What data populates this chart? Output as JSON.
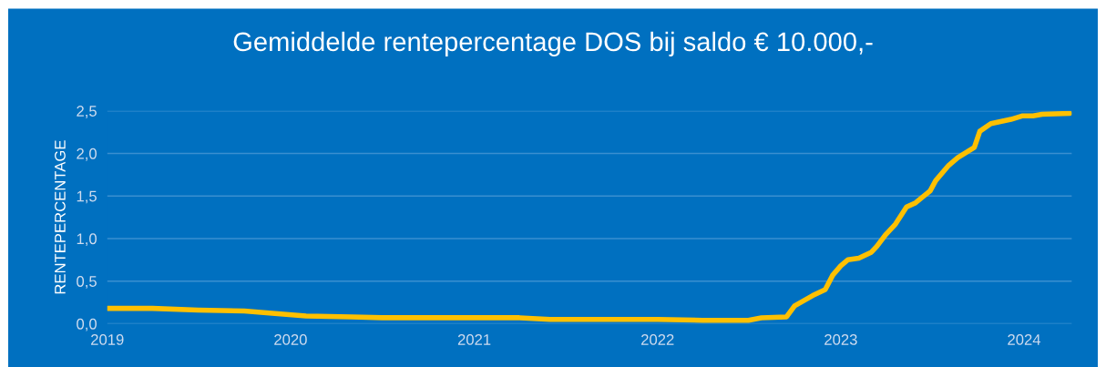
{
  "chart_data": {
    "type": "line",
    "title": "Gemiddelde rentepercentage DOS bij saldo € 10.000,-",
    "ylabel": "RENTEPERCENTAGE",
    "grid": "y",
    "marker": "none",
    "line_style": "solid",
    "xlim": [
      "2019-01-01",
      "2024-04-05"
    ],
    "xticks": [
      {
        "value": "2019-01-01",
        "label": "2019"
      },
      {
        "value": "2020-01-01",
        "label": "2020"
      },
      {
        "value": "2021-01-01",
        "label": "2021"
      },
      {
        "value": "2022-01-01",
        "label": "2022"
      },
      {
        "value": "2023-01-01",
        "label": "2023"
      },
      {
        "value": "2024-01-01",
        "label": "2024"
      }
    ],
    "ylim": [
      0,
      2.5
    ],
    "yticks": [
      {
        "value": 0,
        "label": "0,0"
      },
      {
        "value": 0.5,
        "label": "0,5"
      },
      {
        "value": 1,
        "label": "1,0"
      },
      {
        "value": 1.5,
        "label": "1,5"
      },
      {
        "value": 2,
        "label": "2,0"
      },
      {
        "value": 2.5,
        "label": "2,5"
      }
    ],
    "series": [
      {
        "color": "#ffc000",
        "x": [
          "2019-01-01",
          "2019-04-01",
          "2019-07-01",
          "2019-10-01",
          "2019-12-01",
          "2020-02-01",
          "2020-05-01",
          "2020-07-01",
          "2020-10-01",
          "2021-01-01",
          "2021-04-01",
          "2021-06-01",
          "2021-09-01",
          "2022-01-01",
          "2022-04-01",
          "2022-07-01",
          "2022-07-27",
          "2022-09-15",
          "2022-10-01",
          "2022-11-06",
          "2022-12-01",
          "2022-12-16",
          "2023-01-01",
          "2023-01-15",
          "2023-02-06",
          "2023-03-03",
          "2023-03-14",
          "2023-04-01",
          "2023-04-20",
          "2023-05-12",
          "2023-05-30",
          "2023-06-28",
          "2023-07-09",
          "2023-08-04",
          "2023-08-22",
          "2023-09-24",
          "2023-10-05",
          "2023-10-27",
          "2023-12-06",
          "2023-12-28",
          "2024-01-19",
          "2024-02-06",
          "2024-04-01"
        ],
        "values": [
          0.18,
          0.18,
          0.16,
          0.15,
          0.12,
          0.09,
          0.08,
          0.07,
          0.07,
          0.07,
          0.07,
          0.05,
          0.05,
          0.05,
          0.04,
          0.04,
          0.07,
          0.08,
          0.21,
          0.33,
          0.4,
          0.57,
          0.68,
          0.75,
          0.77,
          0.84,
          0.91,
          1.05,
          1.17,
          1.37,
          1.42,
          1.56,
          1.68,
          1.86,
          1.95,
          2.07,
          2.26,
          2.35,
          2.4,
          2.44,
          2.44,
          2.46,
          2.47
        ]
      }
    ]
  }
}
